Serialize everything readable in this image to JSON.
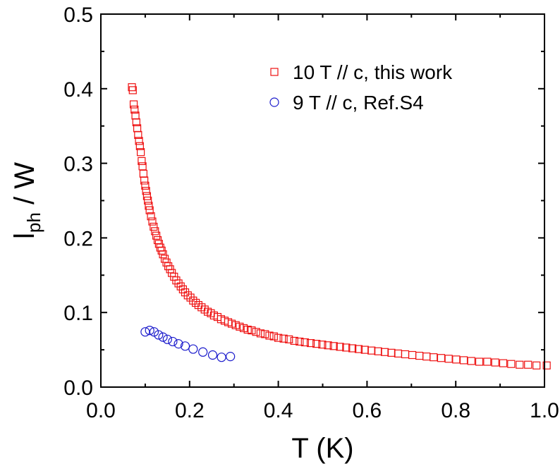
{
  "chart_data": {
    "type": "scatter",
    "title": "",
    "xlabel": "T (K)",
    "ylabel_main": "l",
    "ylabel_sub": "ph",
    "ylabel_rest": " / W",
    "xlim": [
      0.0,
      1.0
    ],
    "ylim": [
      0.0,
      0.5
    ],
    "x_ticks": [
      "0.0",
      "0.2",
      "0.4",
      "0.6",
      "0.8",
      "1.0"
    ],
    "y_ticks": [
      "0.0",
      "0.1",
      "0.2",
      "0.3",
      "0.4",
      "0.5"
    ],
    "grid": false,
    "legend_position": "top-right",
    "series": [
      {
        "name": "10 T // c, this work",
        "color": "#ee1111",
        "marker": "square",
        "x": [
          0.07,
          0.072,
          0.074,
          0.076,
          0.078,
          0.08,
          0.082,
          0.084,
          0.086,
          0.088,
          0.09,
          0.092,
          0.094,
          0.096,
          0.098,
          0.1,
          0.102,
          0.104,
          0.106,
          0.108,
          0.11,
          0.113,
          0.116,
          0.119,
          0.122,
          0.125,
          0.128,
          0.131,
          0.134,
          0.137,
          0.14,
          0.144,
          0.148,
          0.152,
          0.156,
          0.16,
          0.165,
          0.17,
          0.175,
          0.18,
          0.185,
          0.19,
          0.196,
          0.202,
          0.208,
          0.214,
          0.22,
          0.227,
          0.234,
          0.241,
          0.248,
          0.255,
          0.263,
          0.271,
          0.279,
          0.287,
          0.295,
          0.304,
          0.313,
          0.322,
          0.331,
          0.34,
          0.35,
          0.36,
          0.37,
          0.38,
          0.39,
          0.4,
          0.412,
          0.424,
          0.436,
          0.448,
          0.46,
          0.473,
          0.486,
          0.499,
          0.512,
          0.525,
          0.539,
          0.553,
          0.567,
          0.581,
          0.595,
          0.61,
          0.625,
          0.64,
          0.655,
          0.67,
          0.686,
          0.702,
          0.718,
          0.734,
          0.75,
          0.767,
          0.784,
          0.801,
          0.818,
          0.835,
          0.853,
          0.871,
          0.889,
          0.907,
          0.925,
          0.944,
          0.963,
          0.982,
          1.005
        ],
        "y": [
          0.402,
          0.398,
          0.379,
          0.372,
          0.364,
          0.355,
          0.347,
          0.338,
          0.33,
          0.323,
          0.315,
          0.303,
          0.296,
          0.286,
          0.277,
          0.27,
          0.263,
          0.256,
          0.25,
          0.243,
          0.237,
          0.229,
          0.222,
          0.215,
          0.209,
          0.203,
          0.197,
          0.192,
          0.187,
          0.183,
          0.178,
          0.172,
          0.167,
          0.162,
          0.158,
          0.153,
          0.148,
          0.143,
          0.139,
          0.135,
          0.131,
          0.127,
          0.123,
          0.12,
          0.116,
          0.113,
          0.11,
          0.107,
          0.104,
          0.101,
          0.099,
          0.096,
          0.094,
          0.091,
          0.089,
          0.087,
          0.085,
          0.083,
          0.081,
          0.079,
          0.077,
          0.076,
          0.074,
          0.072,
          0.071,
          0.069,
          0.068,
          0.066,
          0.065,
          0.064,
          0.062,
          0.061,
          0.06,
          0.059,
          0.058,
          0.057,
          0.056,
          0.055,
          0.054,
          0.053,
          0.052,
          0.051,
          0.05,
          0.049,
          0.048,
          0.047,
          0.046,
          0.045,
          0.044,
          0.043,
          0.042,
          0.041,
          0.04,
          0.039,
          0.038,
          0.037,
          0.036,
          0.035,
          0.034,
          0.034,
          0.033,
          0.032,
          0.031,
          0.03,
          0.03,
          0.029,
          0.029
        ]
      },
      {
        "name": "9 T // c, Ref.S4",
        "color": "#1a1acc",
        "marker": "circle",
        "x": [
          0.1,
          0.11,
          0.12,
          0.13,
          0.14,
          0.15,
          0.162,
          0.175,
          0.19,
          0.208,
          0.23,
          0.252,
          0.272,
          0.292
        ],
        "y": [
          0.074,
          0.076,
          0.074,
          0.07,
          0.067,
          0.064,
          0.061,
          0.058,
          0.055,
          0.051,
          0.047,
          0.043,
          0.04,
          0.041
        ]
      }
    ]
  }
}
